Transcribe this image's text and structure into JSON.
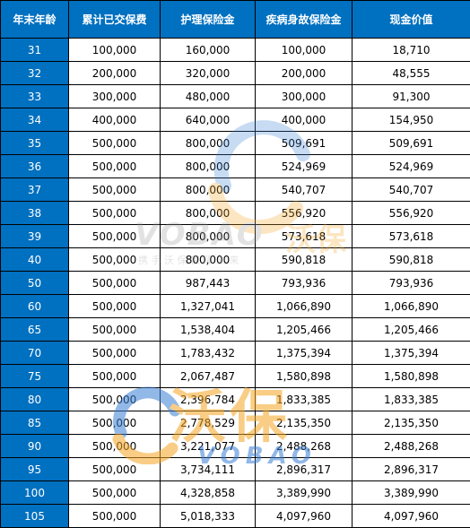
{
  "table": {
    "headers": [
      "年末年龄",
      "累计已交保费",
      "护理保险金",
      "疾病身故保险金",
      "现金价值"
    ],
    "rows": [
      [
        "31",
        "100,000",
        "160,000",
        "100,000",
        "18,710"
      ],
      [
        "32",
        "200,000",
        "320,000",
        "200,000",
        "48,555"
      ],
      [
        "33",
        "300,000",
        "480,000",
        "300,000",
        "91,300"
      ],
      [
        "34",
        "400,000",
        "640,000",
        "400,000",
        "154,950"
      ],
      [
        "35",
        "500,000",
        "800,000",
        "509,691",
        "509,691"
      ],
      [
        "36",
        "500,000",
        "800,000",
        "524,969",
        "524,969"
      ],
      [
        "37",
        "500,000",
        "800,000",
        "540,707",
        "540,707"
      ],
      [
        "38",
        "500,000",
        "800,000",
        "556,920",
        "556,920"
      ],
      [
        "39",
        "500,000",
        "800,000",
        "573,618",
        "573,618"
      ],
      [
        "40",
        "500,000",
        "800,000",
        "590,818",
        "590,818"
      ],
      [
        "50",
        "500,000",
        "987,443",
        "793,936",
        "793,936"
      ],
      [
        "60",
        "500,000",
        "1,327,041",
        "1,066,890",
        "1,066,890"
      ],
      [
        "65",
        "500,000",
        "1,538,404",
        "1,205,466",
        "1,205,466"
      ],
      [
        "70",
        "500,000",
        "1,783,432",
        "1,375,394",
        "1,375,394"
      ],
      [
        "75",
        "500,000",
        "2,067,487",
        "1,580,898",
        "1,580,898"
      ],
      [
        "80",
        "500,000",
        "2,396,784",
        "1,833,385",
        "1,833,385"
      ],
      [
        "85",
        "500,000",
        "2,778,529",
        "2,135,350",
        "2,135,350"
      ],
      [
        "90",
        "500,000",
        "3,221,077",
        "2,488,268",
        "2,488,268"
      ],
      [
        "95",
        "500,000",
        "3,734,111",
        "2,896,317",
        "2,896,317"
      ],
      [
        "100",
        "500,000",
        "4,328,858",
        "3,389,990",
        "3,389,990"
      ],
      [
        "105",
        "500,000",
        "5,018,333",
        "4,097,960",
        "4,097,960"
      ]
    ]
  },
  "watermark": {
    "brand_latin": "VOBAO",
    "brand_cn": "沃保",
    "slogan": "携 手 沃 保   保 障 未 来",
    "big_cn": "沃保",
    "big_latin": "VOBAO",
    "colors": {
      "orange": "#f5a623",
      "blue": "#3a7fd5"
    }
  }
}
